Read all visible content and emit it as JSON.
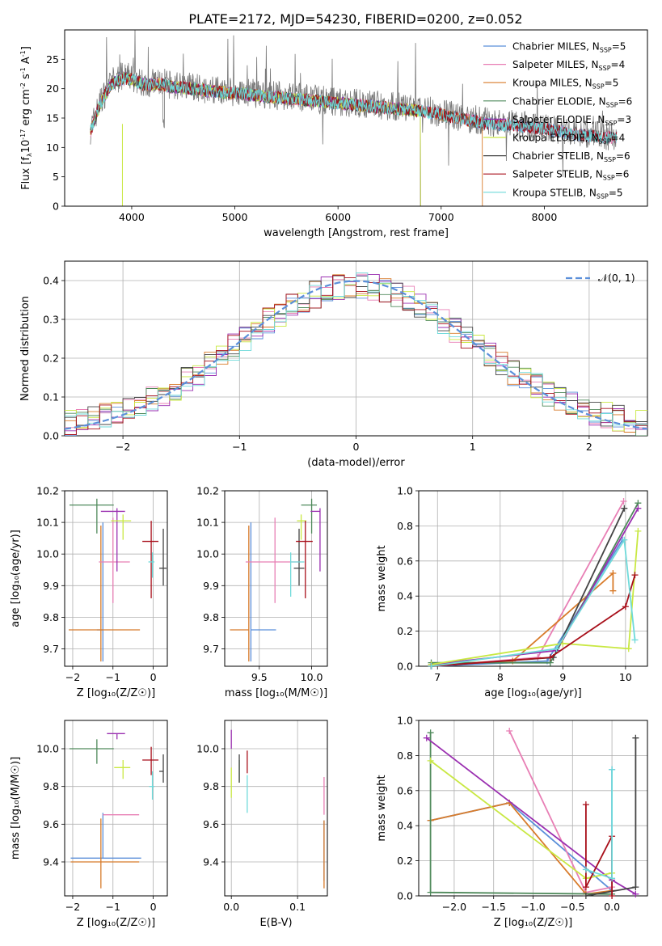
{
  "title": "PLATE=2172, MJD=54230, FIBERID=0200, z=0.052",
  "colors": {
    "Chabrier MILES": "#5b8fd9",
    "Salpeter MILES": "#e87fb5",
    "Kroupa MILES": "#d87b2a",
    "Chabrier ELODIE": "#4f8a5b",
    "Salpeter ELODIE": "#9a2fb0",
    "Kroupa ELODIE": "#c9e843",
    "Chabrier STELIB": "#444444",
    "Salpeter STELIB": "#a80f1a",
    "Kroupa STELIB": "#6fdada",
    "data": "#777777",
    "normal": "#5b8fd9"
  },
  "labels": {
    "spec_ylabel": "Flux [f$_\\lambda$10$^{-17}$ erg cm$^{-2}$ s$^{-1}$ A$^{-1}$]",
    "spec_xlabel": "wavelength [Angstrom, rest frame]",
    "res_ylabel": "Normed distribution",
    "res_xlabel": "(data-model)/error",
    "res_legend": "𝒩(0, 1)",
    "age_label": "age  [log₁₀(age/yr)]",
    "z_label": "Z [log₁₀(Z/Z☉)]",
    "mass_label": "mass [log₁₀(M/M☉)]",
    "ebv_label": "E(B-V)",
    "mw_label": "mass weight"
  },
  "chart_data": [
    {
      "id": "spectrum",
      "type": "line",
      "xlabel": "wavelength [Angstrom, rest frame]",
      "ylabel": "Flux [fλ10⁻¹⁷ erg cm⁻² s⁻¹ A⁻¹]",
      "xlim": [
        3350,
        9000
      ],
      "ylim": [
        0,
        30
      ],
      "xticks": [
        4000,
        5000,
        6000,
        7000,
        8000
      ],
      "yticks": [
        0,
        5,
        10,
        15,
        20,
        25
      ],
      "data_envelope": {
        "x": [
          3600,
          3700,
          3800,
          3900,
          4000,
          4100,
          4200,
          4300,
          4400,
          4500,
          4700,
          5000,
          5300,
          5600,
          5900,
          6200,
          6500,
          6800,
          7100,
          7400,
          7700,
          8000,
          8300,
          8600,
          8700
        ],
        "y": [
          16,
          21,
          24,
          25,
          25,
          24,
          24,
          24,
          23.5,
          23.5,
          23,
          22.5,
          22,
          21.5,
          21,
          20.5,
          20,
          19.5,
          18.5,
          17.5,
          17,
          16.5,
          15.5,
          15,
          15
        ]
      },
      "series": [
        {
          "name": "Chabrier MILES, N$_{SSP}$=5",
          "drop": null
        },
        {
          "name": "Salpeter MILES, N$_{SSP}$=4",
          "drop": null
        },
        {
          "name": "Kroupa MILES, N$_{SSP}$=5",
          "drop": 7400
        },
        {
          "name": "Chabrier ELODIE, N$_{SSP}$=6",
          "drop": 6800
        },
        {
          "name": "Salpeter ELODIE, N$_{SSP}$=3",
          "drop": 6800
        },
        {
          "name": "Kroupa ELODIE, N$_{SSP}$=4",
          "drop": 6800
        },
        {
          "name": "Chabrier STELIB, N$_{SSP}$=6",
          "drop": null
        },
        {
          "name": "Salpeter STELIB, N$_{SSP}$=6",
          "drop": null
        },
        {
          "name": "Kroupa STELIB, N$_{SSP}$=5",
          "drop": null
        }
      ]
    },
    {
      "id": "residuals",
      "type": "line",
      "xlabel": "(data-model)/error",
      "ylabel": "Normed distribution",
      "xlim": [
        -2.5,
        2.5
      ],
      "ylim": [
        0,
        0.45
      ],
      "xticks": [
        -2,
        -1,
        0,
        1,
        2
      ],
      "yticks": [
        0.0,
        0.1,
        0.2,
        0.3,
        0.4
      ],
      "grid": true,
      "legend": "top-right",
      "normal_curve": {
        "name": "𝒩(0, 1)",
        "mean": 0,
        "sigma": 1
      },
      "bin_width": 0.1
    },
    {
      "id": "age_vs_Z",
      "type": "scatter",
      "xlabel": "Z [log₁₀(Z/Z☉)]",
      "ylabel": "age  [log₁₀(age/yr)]",
      "xlim": [
        -2.2,
        0.35
      ],
      "ylim": [
        9.645,
        10.2
      ],
      "xticks": [
        -2,
        -1,
        0
      ],
      "yticks": [
        9.7,
        9.8,
        9.9,
        10.0,
        10.1,
        10.2
      ],
      "grid": true,
      "points": [
        {
          "model": "Chabrier MILES",
          "x": -1.25,
          "y": 9.76,
          "xerr": [
            0.15,
            0
          ],
          "yerr": [
            0.1,
            0.34
          ]
        },
        {
          "model": "Kroupa MILES",
          "x": -1.3,
          "y": 9.76,
          "xerr": [
            0.8,
            0.97
          ],
          "yerr": [
            0.1,
            0.33
          ]
        },
        {
          "model": "Salpeter MILES",
          "x": -1.0,
          "y": 9.975,
          "xerr": [
            0.35,
            0.42
          ],
          "yerr": [
            0.13,
            0.14
          ]
        },
        {
          "model": "Chabrier ELODIE",
          "x": -1.4,
          "y": 10.155,
          "xerr": [
            0.68,
            0.42
          ],
          "yerr": [
            0.09,
            0.02
          ]
        },
        {
          "model": "Salpeter ELODIE",
          "x": -0.9,
          "y": 10.135,
          "xerr": [
            0.4,
            0.2
          ],
          "yerr": [
            0.19,
            0.01
          ]
        },
        {
          "model": "Kroupa ELODIE",
          "x": -0.75,
          "y": 10.105,
          "xerr": [
            0.3,
            0.2
          ],
          "yerr": [
            0.06,
            0.02
          ]
        },
        {
          "model": "Chabrier STELIB",
          "x": 0.25,
          "y": 9.955,
          "xerr": [
            0.1,
            0.08
          ],
          "yerr": [
            0.055,
            0.125
          ]
        },
        {
          "model": "Salpeter STELIB",
          "x": -0.05,
          "y": 10.04,
          "xerr": [
            0.22,
            0.18
          ],
          "yerr": [
            0.18,
            0.065
          ]
        },
        {
          "model": "Kroupa STELIB",
          "x": -0.02,
          "y": 9.975,
          "xerr": [
            0.1,
            0.05
          ],
          "yerr": [
            0.05,
            0.03
          ]
        }
      ]
    },
    {
      "id": "age_vs_mass",
      "type": "scatter",
      "xlabel": "mass [log₁₀(M/M☉)]",
      "ylabel": "",
      "xlim": [
        9.17,
        10.15
      ],
      "ylim": [
        9.645,
        10.2
      ],
      "xticks": [
        9.5,
        10.0
      ],
      "yticks": [
        9.7,
        9.8,
        9.9,
        10.0,
        10.1,
        10.2
      ],
      "grid": true,
      "points": [
        {
          "model": "Chabrier MILES",
          "x": 9.42,
          "y": 9.76,
          "xerr": [
            0,
            0.24
          ],
          "yerr": [
            0.1,
            0.34
          ]
        },
        {
          "model": "Kroupa MILES",
          "x": 9.4,
          "y": 9.76,
          "xerr": [
            0.18,
            0
          ],
          "yerr": [
            0.1,
            0.33
          ]
        },
        {
          "model": "Salpeter MILES",
          "x": 9.65,
          "y": 9.975,
          "xerr": [
            0.28,
            0.24
          ],
          "yerr": [
            0.13,
            0.14
          ]
        },
        {
          "model": "Chabrier ELODIE",
          "x": 10.0,
          "y": 10.155,
          "xerr": [
            0.1,
            0.05
          ],
          "yerr": [
            0.09,
            0.02
          ]
        },
        {
          "model": "Salpeter ELODIE",
          "x": 10.08,
          "y": 10.135,
          "xerr": [
            0.09,
            0.0
          ],
          "yerr": [
            0.19,
            0.01
          ]
        },
        {
          "model": "Kroupa ELODIE",
          "x": 9.9,
          "y": 10.105,
          "xerr": [
            0.04,
            0.05
          ],
          "yerr": [
            0.06,
            0.02
          ]
        },
        {
          "model": "Chabrier STELIB",
          "x": 9.88,
          "y": 9.955,
          "xerr": [
            0.05,
            0.05
          ],
          "yerr": [
            0.055,
            0.125
          ]
        },
        {
          "model": "Salpeter STELIB",
          "x": 9.94,
          "y": 10.04,
          "xerr": [
            0.09,
            0.07
          ],
          "yerr": [
            0.18,
            0.065
          ]
        },
        {
          "model": "Kroupa STELIB",
          "x": 9.8,
          "y": 9.975,
          "xerr": [
            0.0,
            0.13
          ],
          "yerr": [
            0.11,
            0.03
          ]
        }
      ]
    },
    {
      "id": "weight_vs_age",
      "type": "line",
      "xlabel": "age  [log₁₀(age/yr)]",
      "ylabel": "mass weight",
      "xlim": [
        6.7,
        10.35
      ],
      "ylim": [
        0,
        1
      ],
      "xticks": [
        7,
        8,
        9,
        10
      ],
      "yticks": [
        0.0,
        0.2,
        0.4,
        0.6,
        0.8,
        1.0
      ],
      "grid": true,
      "series": [
        {
          "model": "Chabrier MILES",
          "x": [
            6.9,
            8.75,
            9.95
          ],
          "y": [
            0.0,
            0.03,
            0.72
          ]
        },
        {
          "model": "Salpeter MILES",
          "x": [
            6.9,
            8.6,
            9.97
          ],
          "y": [
            0.0,
            0.05,
            0.94
          ]
        },
        {
          "model": "Kroupa MILES",
          "x": [
            6.9,
            8.2,
            9.8,
            9.8
          ],
          "y": [
            0.01,
            0.03,
            0.53,
            0.43
          ]
        },
        {
          "model": "Chabrier ELODIE",
          "x": [
            6.9,
            8.8,
            10.2
          ],
          "y": [
            0.02,
            0.02,
            0.93
          ]
        },
        {
          "model": "Salpeter ELODIE",
          "x": [
            6.9,
            8.9,
            10.2
          ],
          "y": [
            0.01,
            0.09,
            0.9
          ]
        },
        {
          "model": "Kroupa ELODIE",
          "x": [
            6.9,
            9.0,
            10.05,
            10.2
          ],
          "y": [
            0.01,
            0.13,
            0.1,
            0.77
          ]
        },
        {
          "model": "Chabrier STELIB",
          "x": [
            6.9,
            8.85,
            9.98
          ],
          "y": [
            0.0,
            0.05,
            0.9
          ]
        },
        {
          "model": "Salpeter STELIB",
          "x": [
            6.9,
            8.8,
            10.0,
            10.15
          ],
          "y": [
            0.0,
            0.05,
            0.34,
            0.52
          ]
        },
        {
          "model": "Kroupa STELIB",
          "x": [
            6.9,
            8.9,
            9.98,
            10.15
          ],
          "y": [
            0.0,
            0.1,
            0.72,
            0.15
          ]
        }
      ]
    },
    {
      "id": "mass_vs_Z",
      "type": "scatter",
      "xlabel": "Z [log₁₀(Z/Z☉)]",
      "ylabel": "mass [log₁₀(M/M☉)]",
      "xlim": [
        -2.2,
        0.35
      ],
      "ylim": [
        9.22,
        10.15
      ],
      "xticks": [
        -2,
        -1,
        0
      ],
      "yticks": [
        9.4,
        9.6,
        9.8,
        10.0
      ],
      "grid": true,
      "points": [
        {
          "model": "Chabrier MILES",
          "x": -1.25,
          "y": 9.42,
          "xerr": [
            0.8,
            0.95
          ],
          "yerr": [
            0.0,
            0.24
          ]
        },
        {
          "model": "Kroupa MILES",
          "x": -1.3,
          "y": 9.4,
          "xerr": [
            0.75,
            0.95
          ],
          "yerr": [
            0.14,
            0.23
          ]
        },
        {
          "model": "Salpeter MILES",
          "x": -1.0,
          "y": 9.65,
          "xerr": [
            0.25,
            0.65
          ],
          "yerr": [
            0.0,
            0.0
          ]
        },
        {
          "model": "Chabrier ELODIE",
          "x": -1.4,
          "y": 10.0,
          "xerr": [
            0.68,
            0.42
          ],
          "yerr": [
            0.08,
            0.05
          ]
        },
        {
          "model": "Salpeter ELODIE",
          "x": -0.9,
          "y": 10.08,
          "xerr": [
            0.25,
            0.2
          ],
          "yerr": [
            0.03,
            0.0
          ]
        },
        {
          "model": "Kroupa ELODIE",
          "x": -0.75,
          "y": 9.9,
          "xerr": [
            0.22,
            0.18
          ],
          "yerr": [
            0.06,
            0.04
          ]
        },
        {
          "model": "Chabrier STELIB",
          "x": 0.25,
          "y": 9.88,
          "xerr": [
            0.1,
            0.0
          ],
          "yerr": [
            0.06,
            0.09
          ]
        },
        {
          "model": "Salpeter STELIB",
          "x": -0.05,
          "y": 9.94,
          "xerr": [
            0.22,
            0.18
          ],
          "yerr": [
            0.08,
            0.07
          ]
        },
        {
          "model": "Kroupa STELIB",
          "x": -0.02,
          "y": 9.8,
          "xerr": [
            0.08,
            0.05
          ],
          "yerr": [
            0.07,
            0.08
          ]
        }
      ]
    },
    {
      "id": "mass_vs_ebv",
      "type": "scatter",
      "xlabel": "E(B-V)",
      "ylabel": "",
      "xlim": [
        -0.01,
        0.145
      ],
      "ylim": [
        9.22,
        10.15
      ],
      "xticks": [
        0.0,
        0.1
      ],
      "yticks": [
        9.4,
        9.6,
        9.8,
        10.0
      ],
      "grid": true,
      "points": [
        {
          "model": "Chabrier MILES",
          "x": 0.14,
          "y": 9.42,
          "yerr": [
            0.12,
            0.2
          ]
        },
        {
          "model": "Kroupa MILES",
          "x": 0.14,
          "y": 9.4,
          "yerr": [
            0.14,
            0.22
          ]
        },
        {
          "model": "Salpeter MILES",
          "x": 0.14,
          "y": 9.65,
          "yerr": [
            0.0,
            0.2
          ]
        },
        {
          "model": "Chabrier ELODIE",
          "x": 0.012,
          "y": 9.88,
          "yerr": [
            0.06,
            0.06
          ]
        },
        {
          "model": "Salpeter ELODIE",
          "x": 0.0,
          "y": 10.0,
          "yerr": [
            0.0,
            0.1
          ]
        },
        {
          "model": "Kroupa ELODIE",
          "x": 0.0,
          "y": 9.82,
          "yerr": [
            0.08,
            0.08
          ]
        },
        {
          "model": "Chabrier STELIB",
          "x": 0.012,
          "y": 9.88,
          "yerr": [
            0.06,
            0.09
          ]
        },
        {
          "model": "Salpeter STELIB",
          "x": 0.024,
          "y": 9.93,
          "yerr": [
            0.06,
            0.06
          ]
        },
        {
          "model": "Kroupa STELIB",
          "x": 0.024,
          "y": 9.78,
          "yerr": [
            0.12,
            0.08
          ]
        }
      ]
    },
    {
      "id": "weight_vs_Z",
      "type": "line",
      "xlabel": "Z [log₁₀(Z/Z☉)]",
      "ylabel": "mass weight",
      "xlim": [
        -2.45,
        0.45
      ],
      "ylim": [
        0,
        1
      ],
      "xticks": [
        -2.0,
        -1.5,
        -1.0,
        -0.5,
        0.0
      ],
      "xticklabels": [
        "−2.0",
        "−1.5",
        "−1.0",
        "−0.5",
        "0.0"
      ],
      "yticks": [
        0.0,
        0.2,
        0.4,
        0.6,
        0.8,
        1.0
      ],
      "grid": true,
      "series": [
        {
          "model": "Chabrier MILES",
          "x": [
            -2.3,
            -1.3,
            0.0,
            0.0
          ],
          "y": [
            0.43,
            0.53,
            0.03,
            0.72
          ]
        },
        {
          "model": "Salpeter MILES",
          "x": [
            -1.3,
            -0.33,
            0.0
          ],
          "y": [
            0.94,
            0.02,
            0.05
          ]
        },
        {
          "model": "Kroupa MILES",
          "x": [
            -2.3,
            -1.3,
            -0.33,
            0.0
          ],
          "y": [
            0.43,
            0.53,
            0.01,
            0.03
          ]
        },
        {
          "model": "Chabrier ELODIE",
          "x": [
            -2.3,
            -2.3,
            0.0
          ],
          "y": [
            0.93,
            0.02,
            0.01
          ]
        },
        {
          "model": "Salpeter ELODIE",
          "x": [
            -2.35,
            0.0,
            0.3
          ],
          "y": [
            0.9,
            0.09,
            0.01
          ]
        },
        {
          "model": "Kroupa ELODIE",
          "x": [
            -2.3,
            -0.33,
            0.0
          ],
          "y": [
            0.77,
            0.1,
            0.13
          ]
        },
        {
          "model": "Chabrier STELIB",
          "x": [
            -0.33,
            0.3,
            0.3
          ],
          "y": [
            0.0,
            0.05,
            0.9
          ]
        },
        {
          "model": "Salpeter STELIB",
          "x": [
            -0.33,
            -0.33,
            0.0,
            0.0
          ],
          "y": [
            0.52,
            0.05,
            0.34,
            0.0
          ]
        },
        {
          "model": "Kroupa STELIB",
          "x": [
            -0.33,
            0.0,
            0.0
          ],
          "y": [
            0.15,
            0.1,
            0.72
          ]
        }
      ]
    }
  ]
}
